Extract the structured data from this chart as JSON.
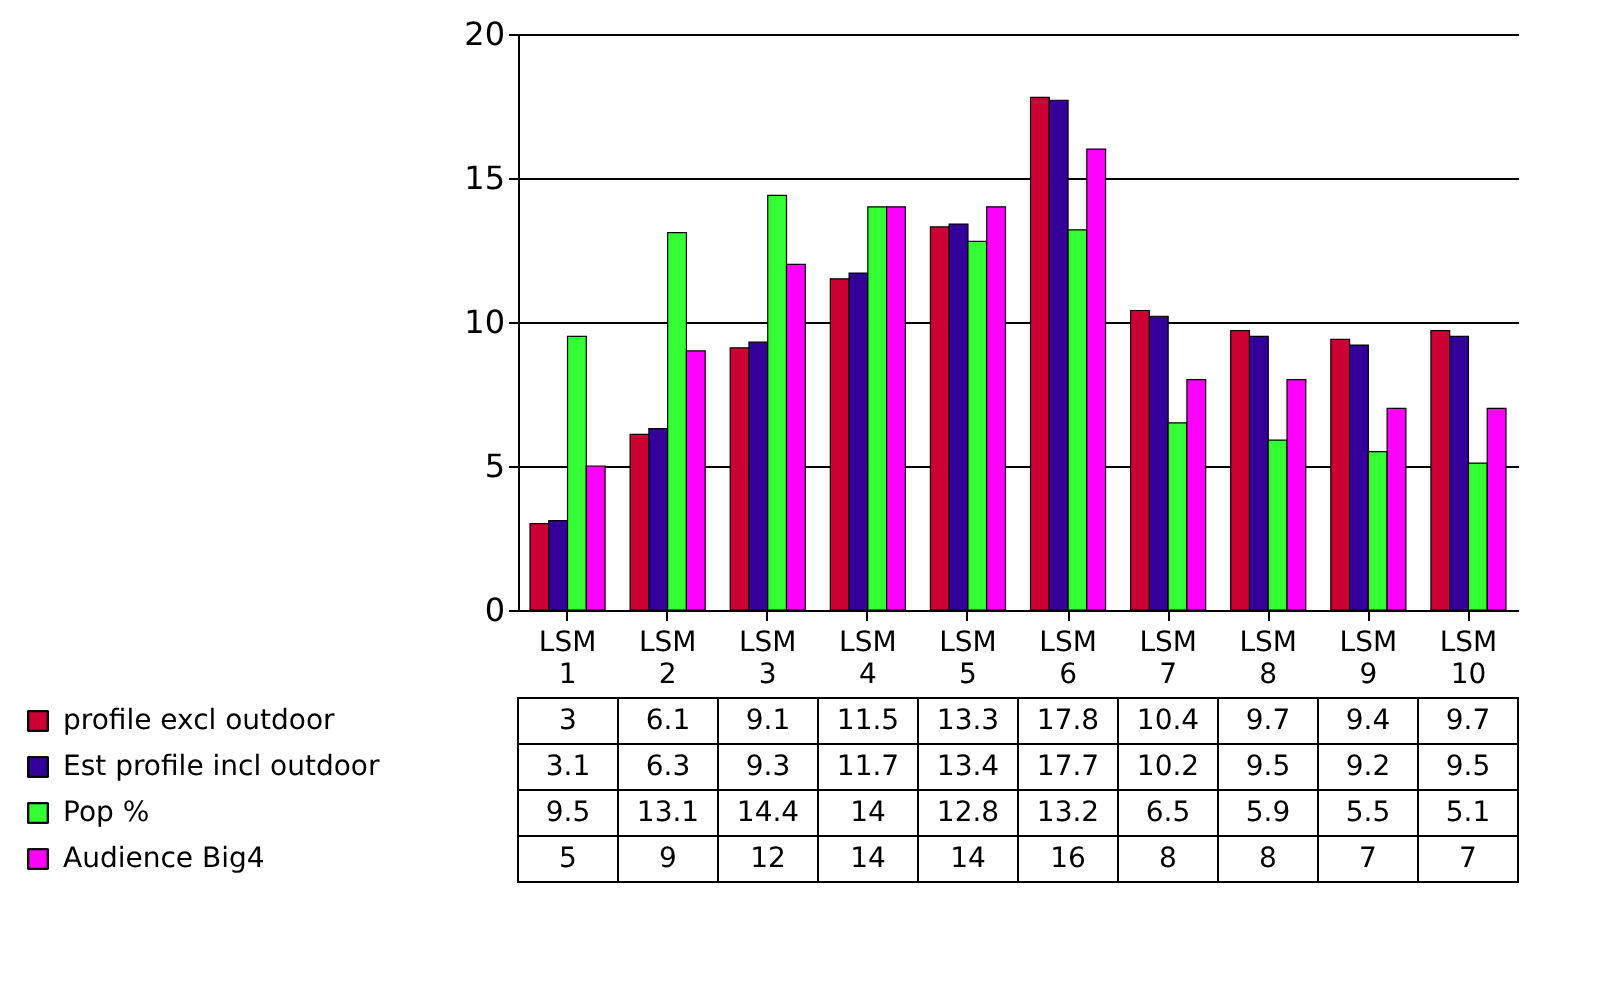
{
  "chart_data": {
    "type": "bar",
    "categories": [
      "LSM 1",
      "LSM 2",
      "LSM 3",
      "LSM 4",
      "LSM 5",
      "LSM 6",
      "LSM 7",
      "LSM 8",
      "LSM 9",
      "LSM 10"
    ],
    "series": [
      {
        "name": "profile excl outdoor",
        "color": "#cc0033",
        "values": [
          3,
          6.1,
          9.1,
          11.5,
          13.3,
          17.8,
          10.4,
          9.7,
          9.4,
          9.7
        ]
      },
      {
        "name": "Est profile incl outdoor",
        "color": "#330099",
        "values": [
          3.1,
          6.3,
          9.3,
          11.7,
          13.4,
          17.7,
          10.2,
          9.5,
          9.2,
          9.5
        ]
      },
      {
        "name": "Pop %",
        "color": "#33ff33",
        "values": [
          9.5,
          13.1,
          14.4,
          14,
          12.8,
          13.2,
          6.5,
          5.9,
          5.5,
          5.1
        ]
      },
      {
        "name": "Audience Big4",
        "color": "#ff00ff",
        "values": [
          5,
          9,
          12,
          14,
          14,
          16,
          8,
          8,
          7,
          7
        ]
      }
    ],
    "ylim": [
      0,
      20
    ],
    "yticks": [
      0,
      5,
      10,
      15,
      20
    ],
    "grid": "y",
    "legend": "bottom",
    "data_labels": true
  }
}
